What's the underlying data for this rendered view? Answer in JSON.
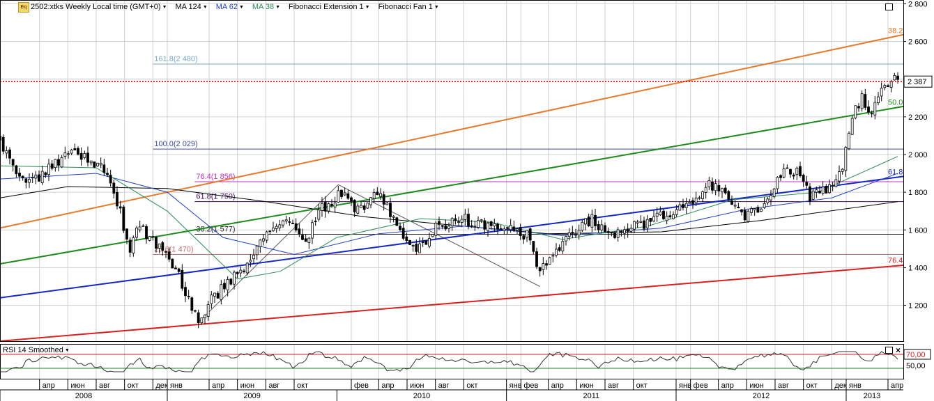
{
  "toolbar": {
    "logo": "Eq",
    "items": [
      {
        "label": "2502:xtks Weekly Local time (GMT+0)",
        "color": "#000000"
      },
      {
        "label": "MA 124",
        "color": "#000000"
      },
      {
        "label": "MA 62",
        "color": "#1f3fbf"
      },
      {
        "label": "MA 38",
        "color": "#2e8b57"
      },
      {
        "label": "Fibonacci Extension 1",
        "color": "#000000"
      },
      {
        "label": "Fibonacci Fan 1",
        "color": "#000000"
      }
    ]
  },
  "rsi_panel": {
    "label": "RSI 14 Smoothed",
    "level_high": 70,
    "level_low": 30,
    "level_high_label": "70,00",
    "tick_50_label": "50,00",
    "current_value": 70
  },
  "chart_data": {
    "type": "candlestick",
    "timeframe": "weekly",
    "yticks": [
      1200,
      1400,
      1600,
      1800,
      2000,
      2200,
      2400,
      2600,
      2800
    ],
    "ytick_labels": [
      "1 200",
      "1 400",
      "1 600",
      "1 800",
      "2 000",
      "2 200",
      "2 400",
      "2 600",
      "2 800"
    ],
    "ylim": [
      1010,
      2820
    ],
    "x_start": "2008-01-07",
    "x_end": "2013-04-22",
    "x_month_ticks": [
      {
        "date": "2008-04-01",
        "label": "апр"
      },
      {
        "date": "2008-06-01",
        "label": "июн"
      },
      {
        "date": "2008-08-01",
        "label": "авг"
      },
      {
        "date": "2008-10-01",
        "label": "окт"
      },
      {
        "date": "2008-12-01",
        "label": "дек"
      },
      {
        "date": "2009-01-01",
        "label": "янв"
      },
      {
        "date": "2009-04-01",
        "label": "апр"
      },
      {
        "date": "2009-06-01",
        "label": "июн"
      },
      {
        "date": "2009-08-01",
        "label": "авг"
      },
      {
        "date": "2009-10-01",
        "label": "окт"
      },
      {
        "date": "2010-02-01",
        "label": "фев"
      },
      {
        "date": "2010-04-01",
        "label": "апр"
      },
      {
        "date": "2010-06-01",
        "label": "июн"
      },
      {
        "date": "2010-08-01",
        "label": "авг"
      },
      {
        "date": "2010-10-01",
        "label": "окт"
      },
      {
        "date": "2011-01-01",
        "label": "янв"
      },
      {
        "date": "2011-02-01",
        "label": "фев"
      },
      {
        "date": "2011-04-01",
        "label": "апр"
      },
      {
        "date": "2011-06-01",
        "label": "июн"
      },
      {
        "date": "2011-08-01",
        "label": "авг"
      },
      {
        "date": "2011-10-01",
        "label": "окт"
      },
      {
        "date": "2012-01-01",
        "label": "янв"
      },
      {
        "date": "2012-02-01",
        "label": "фев"
      },
      {
        "date": "2012-04-01",
        "label": "апр"
      },
      {
        "date": "2012-06-01",
        "label": "июн"
      },
      {
        "date": "2012-08-01",
        "label": "авг"
      },
      {
        "date": "2012-10-01",
        "label": "окт"
      },
      {
        "date": "2012-12-01",
        "label": "дек"
      },
      {
        "date": "2013-01-01",
        "label": "янв"
      },
      {
        "date": "2013-04-01",
        "label": "апр"
      }
    ],
    "x_years": [
      {
        "label": "2008",
        "start": "2008-01-07",
        "end": "2009-01-01"
      },
      {
        "label": "2009",
        "start": "2009-01-01",
        "end": "2010-01-01"
      },
      {
        "label": "2010",
        "start": "2010-01-01",
        "end": "2011-01-01"
      },
      {
        "label": "2011",
        "start": "2011-01-01",
        "end": "2012-01-01"
      },
      {
        "label": "2012",
        "start": "2012-01-01",
        "end": "2013-01-01"
      },
      {
        "label": "2013",
        "start": "2013-01-01",
        "end": "2013-04-22"
      }
    ],
    "price_anchors": [
      {
        "date": "2008-01-07",
        "price": 2080
      },
      {
        "date": "2008-02-11",
        "price": 1890
      },
      {
        "date": "2008-03-17",
        "price": 1860
      },
      {
        "date": "2008-04-21",
        "price": 1920
      },
      {
        "date": "2008-05-19",
        "price": 1980
      },
      {
        "date": "2008-06-23",
        "price": 2010
      },
      {
        "date": "2008-07-28",
        "price": 1960
      },
      {
        "date": "2008-08-25",
        "price": 1890
      },
      {
        "date": "2008-09-22",
        "price": 1700
      },
      {
        "date": "2008-10-13",
        "price": 1480
      },
      {
        "date": "2008-10-27",
        "price": 1640
      },
      {
        "date": "2008-11-24",
        "price": 1560
      },
      {
        "date": "2008-12-29",
        "price": 1480
      },
      {
        "date": "2009-01-26",
        "price": 1350
      },
      {
        "date": "2009-02-16",
        "price": 1230
      },
      {
        "date": "2009-03-09",
        "price": 1120
      },
      {
        "date": "2009-04-06",
        "price": 1230
      },
      {
        "date": "2009-05-04",
        "price": 1300
      },
      {
        "date": "2009-06-08",
        "price": 1380
      },
      {
        "date": "2009-07-06",
        "price": 1460
      },
      {
        "date": "2009-08-03",
        "price": 1600
      },
      {
        "date": "2009-09-07",
        "price": 1660
      },
      {
        "date": "2009-10-05",
        "price": 1600
      },
      {
        "date": "2009-10-26",
        "price": 1520
      },
      {
        "date": "2009-11-23",
        "price": 1700
      },
      {
        "date": "2009-12-28",
        "price": 1770
      },
      {
        "date": "2010-01-18",
        "price": 1800
      },
      {
        "date": "2010-02-15",
        "price": 1700
      },
      {
        "date": "2010-03-15",
        "price": 1770
      },
      {
        "date": "2010-04-05",
        "price": 1800
      },
      {
        "date": "2010-05-03",
        "price": 1650
      },
      {
        "date": "2010-05-31",
        "price": 1550
      },
      {
        "date": "2010-06-28",
        "price": 1500
      },
      {
        "date": "2010-07-26",
        "price": 1600
      },
      {
        "date": "2010-08-30",
        "price": 1640
      },
      {
        "date": "2010-09-27",
        "price": 1660
      },
      {
        "date": "2010-10-25",
        "price": 1640
      },
      {
        "date": "2010-11-22",
        "price": 1610
      },
      {
        "date": "2010-12-27",
        "price": 1620
      },
      {
        "date": "2011-01-24",
        "price": 1600
      },
      {
        "date": "2011-02-21",
        "price": 1560
      },
      {
        "date": "2011-03-14",
        "price": 1370
      },
      {
        "date": "2011-04-11",
        "price": 1470
      },
      {
        "date": "2011-05-09",
        "price": 1560
      },
      {
        "date": "2011-06-06",
        "price": 1620
      },
      {
        "date": "2011-07-04",
        "price": 1660
      },
      {
        "date": "2011-08-08",
        "price": 1560
      },
      {
        "date": "2011-09-05",
        "price": 1600
      },
      {
        "date": "2011-10-03",
        "price": 1620
      },
      {
        "date": "2011-11-07",
        "price": 1640
      },
      {
        "date": "2011-12-05",
        "price": 1680
      },
      {
        "date": "2012-01-09",
        "price": 1710
      },
      {
        "date": "2012-02-06",
        "price": 1760
      },
      {
        "date": "2012-03-05",
        "price": 1840
      },
      {
        "date": "2012-04-02",
        "price": 1830
      },
      {
        "date": "2012-04-30",
        "price": 1720
      },
      {
        "date": "2012-05-28",
        "price": 1660
      },
      {
        "date": "2012-06-25",
        "price": 1720
      },
      {
        "date": "2012-07-23",
        "price": 1800
      },
      {
        "date": "2012-08-20",
        "price": 1900
      },
      {
        "date": "2012-09-17",
        "price": 1910
      },
      {
        "date": "2012-10-15",
        "price": 1780
      },
      {
        "date": "2012-11-12",
        "price": 1800
      },
      {
        "date": "2012-12-03",
        "price": 1850
      },
      {
        "date": "2012-12-24",
        "price": 1930
      },
      {
        "date": "2013-01-14",
        "price": 2200
      },
      {
        "date": "2013-02-04",
        "price": 2300
      },
      {
        "date": "2013-02-25",
        "price": 2230
      },
      {
        "date": "2013-03-18",
        "price": 2330
      },
      {
        "date": "2013-04-08",
        "price": 2380
      },
      {
        "date": "2013-04-22",
        "price": 2420
      }
    ],
    "moving_averages": [
      {
        "name": "MA 124",
        "color": "#000000",
        "points": [
          {
            "date": "2008-01-07",
            "price": 1770
          },
          {
            "date": "2008-06-01",
            "price": 1830
          },
          {
            "date": "2009-01-01",
            "price": 1820
          },
          {
            "date": "2009-08-01",
            "price": 1750
          },
          {
            "date": "2010-03-01",
            "price": 1670
          },
          {
            "date": "2010-10-01",
            "price": 1620
          },
          {
            "date": "2011-04-01",
            "price": 1580
          },
          {
            "date": "2011-12-01",
            "price": 1590
          },
          {
            "date": "2012-07-01",
            "price": 1650
          },
          {
            "date": "2013-04-22",
            "price": 1750
          }
        ]
      },
      {
        "name": "MA 62",
        "color": "#1f3fbf",
        "points": [
          {
            "date": "2008-01-07",
            "price": 1870
          },
          {
            "date": "2008-08-01",
            "price": 1900
          },
          {
            "date": "2009-01-01",
            "price": 1800
          },
          {
            "date": "2009-05-01",
            "price": 1560
          },
          {
            "date": "2009-10-01",
            "price": 1470
          },
          {
            "date": "2010-04-01",
            "price": 1580
          },
          {
            "date": "2010-10-01",
            "price": 1620
          },
          {
            "date": "2011-05-01",
            "price": 1570
          },
          {
            "date": "2011-12-01",
            "price": 1610
          },
          {
            "date": "2012-06-01",
            "price": 1710
          },
          {
            "date": "2012-12-01",
            "price": 1770
          },
          {
            "date": "2013-04-22",
            "price": 1900
          }
        ]
      },
      {
        "name": "MA 38",
        "color": "#2e8b57",
        "points": [
          {
            "date": "2008-01-07",
            "price": 1940
          },
          {
            "date": "2008-08-01",
            "price": 1930
          },
          {
            "date": "2009-01-01",
            "price": 1700
          },
          {
            "date": "2009-06-01",
            "price": 1340
          },
          {
            "date": "2009-09-01",
            "price": 1380
          },
          {
            "date": "2010-01-01",
            "price": 1560
          },
          {
            "date": "2010-07-01",
            "price": 1660
          },
          {
            "date": "2010-12-01",
            "price": 1640
          },
          {
            "date": "2011-05-01",
            "price": 1550
          },
          {
            "date": "2011-11-01",
            "price": 1620
          },
          {
            "date": "2012-05-01",
            "price": 1760
          },
          {
            "date": "2012-11-01",
            "price": 1800
          },
          {
            "date": "2013-04-22",
            "price": 1990
          }
        ]
      }
    ],
    "fibonacci_extension": {
      "levels": [
        {
          "label": "161.8(2 480)",
          "price": 2480,
          "color": "#7aa7c7",
          "x_from": "2008-12-01"
        },
        {
          "label": "100.0(2 029)",
          "price": 2029,
          "color": "#3a4a9a",
          "x_from": "2008-12-01"
        },
        {
          "label": "76.4(1 856)",
          "price": 1856,
          "color": "#c030c0",
          "x_from": "2009-03-01"
        },
        {
          "label": "61.8(1 750)",
          "price": 1750,
          "color": "#400060",
          "x_from": "2009-03-01"
        },
        {
          "label": "38.2(1 577)",
          "price": 1577,
          "color": "#222222",
          "x_from": "2009-03-01"
        },
        {
          "label": "23.6(1 470)",
          "price": 1470,
          "color": "#c07070",
          "x_from": "2008-12-01"
        }
      ],
      "swing": [
        {
          "date": "2009-03-09",
          "price": 1110
        },
        {
          "date": "2010-01-04",
          "price": 1840
        },
        {
          "date": "2011-03-14",
          "price": 1300
        }
      ]
    },
    "fibonacci_fan": {
      "lines": [
        {
          "label": "38.2",
          "color": "#e8782a",
          "from": {
            "date": "2008-01-07",
            "price": 1610
          },
          "to": {
            "date": "2013-04-22",
            "price": 2630
          }
        },
        {
          "label": "50.0",
          "color": "#1e8a1e",
          "from": {
            "date": "2008-01-07",
            "price": 1420
          },
          "to": {
            "date": "2013-04-22",
            "price": 2250
          }
        },
        {
          "label": "61.8",
          "color": "#1428c8",
          "from": {
            "date": "2008-01-07",
            "price": 1240
          },
          "to": {
            "date": "2013-04-22",
            "price": 1880
          }
        },
        {
          "label": "76.4",
          "color": "#d82020",
          "from": {
            "date": "2008-01-07",
            "price": 1010
          },
          "to": {
            "date": "2013-04-22",
            "price": 1410
          }
        }
      ]
    },
    "current_price": 2387,
    "current_price_label": "2 387",
    "current_price_color": "#c00000",
    "grid": true,
    "colors": {
      "up_candle": "#ffffff",
      "down_candle": "#000000",
      "grid": "#d0d0d0"
    }
  }
}
